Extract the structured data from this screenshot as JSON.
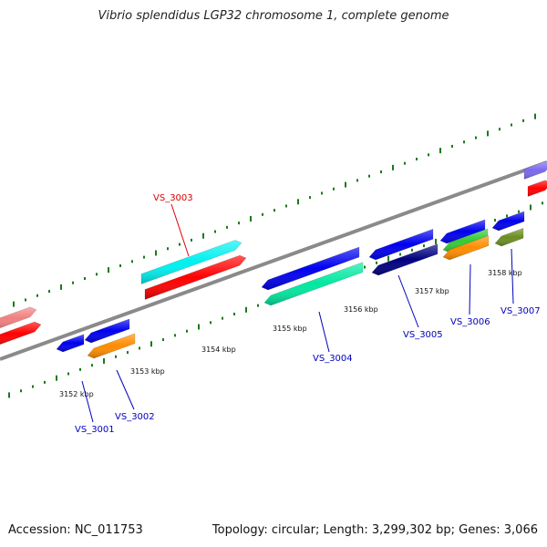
{
  "title": "Vibrio splendidus LGP32 chromosome 1, complete genome",
  "footer": {
    "accession": "Accession: NC_011753",
    "summary": "Topology: circular; Length: 3,299,302 bp; Genes: 3,066"
  },
  "colors": {
    "backbone": "#8a8a8a",
    "tick": "#1a7a1a",
    "label_forward": "#dd0000",
    "label_reverse": "#0000bb"
  },
  "ticks": [
    {
      "label": "3152 kbp"
    },
    {
      "label": "3153 kbp"
    },
    {
      "label": "3154 kbp"
    },
    {
      "label": "3155 kbp"
    },
    {
      "label": "3156 kbp"
    },
    {
      "label": "3157 kbp"
    },
    {
      "label": "3158 kbp"
    }
  ],
  "gene_labels": [
    {
      "name": "VS_3003",
      "strand": "forward"
    },
    {
      "name": "VS_3001",
      "strand": "reverse"
    },
    {
      "name": "VS_3002",
      "strand": "reverse"
    },
    {
      "name": "VS_3004",
      "strand": "reverse"
    },
    {
      "name": "VS_3005",
      "strand": "reverse"
    },
    {
      "name": "VS_3006",
      "strand": "reverse"
    },
    {
      "name": "VS_3007",
      "strand": "reverse"
    }
  ],
  "features": [
    {
      "id": "forward-feature-pink",
      "color": "#f08080"
    },
    {
      "id": "forward-feature-red-left",
      "color": "#ff0000"
    },
    {
      "id": "forward-feature-cyan",
      "color": "#00f0f0"
    },
    {
      "id": "forward-feature-red-middle",
      "color": "#ff0000"
    },
    {
      "id": "forward-feature-purple",
      "color": "#7b68ee"
    },
    {
      "id": "forward-feature-red-right",
      "color": "#ff0000"
    },
    {
      "id": "reverse-feature-blue-1",
      "color": "#0000ee"
    },
    {
      "id": "reverse-feature-blue-2",
      "color": "#0000ee"
    },
    {
      "id": "reverse-feature-orange-1",
      "color": "#ff8c00"
    },
    {
      "id": "reverse-feature-blue-3",
      "color": "#0000ee"
    },
    {
      "id": "reverse-feature-green-1",
      "color": "#00e8a0"
    },
    {
      "id": "reverse-feature-blue-4",
      "color": "#0000ee"
    },
    {
      "id": "reverse-feature-navy",
      "color": "#000080"
    },
    {
      "id": "reverse-feature-blue-5",
      "color": "#0000ee"
    },
    {
      "id": "reverse-feature-green-2",
      "color": "#33cc33"
    },
    {
      "id": "reverse-feature-orange-2",
      "color": "#ff8c00"
    },
    {
      "id": "reverse-feature-blue-6",
      "color": "#0000ee"
    },
    {
      "id": "reverse-feature-olive",
      "color": "#6b8e23"
    }
  ]
}
